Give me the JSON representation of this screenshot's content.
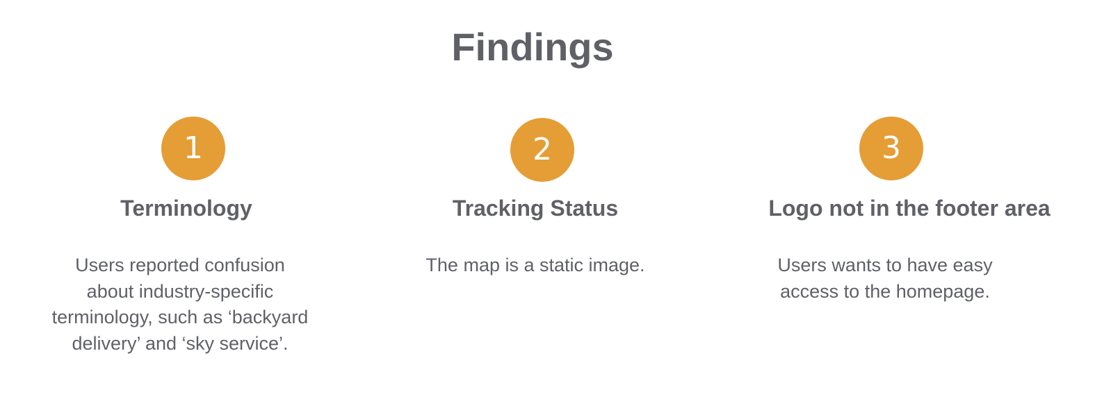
{
  "page": {
    "title": "Findings"
  },
  "colors": {
    "accent": "#e59d35",
    "text": "#5f6167",
    "background": "#ffffff"
  },
  "findings": [
    {
      "number": "1",
      "heading": "Terminology",
      "description": "Users reported confusion about industry-specific terminology, such as ‘backyard delivery’ and ‘sky service’."
    },
    {
      "number": "2",
      "heading": "Tracking Status",
      "description": "The map is a static image."
    },
    {
      "number": "3",
      "heading": "Logo not in the footer area",
      "description": "Users wants to have easy access to the homepage."
    }
  ]
}
